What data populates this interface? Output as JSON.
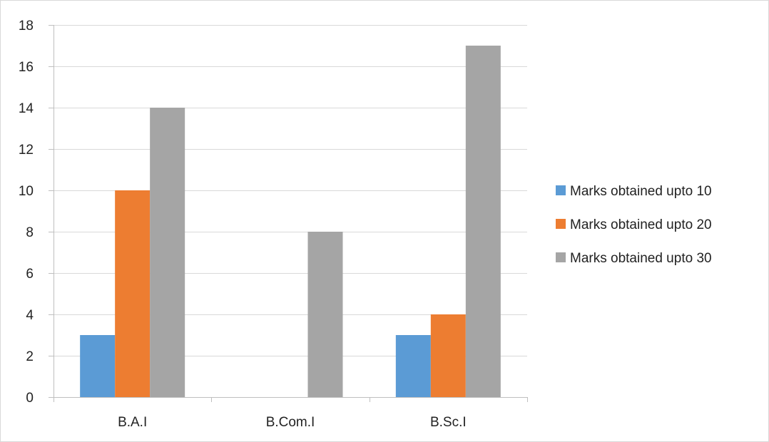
{
  "chart_data": {
    "type": "bar",
    "title": "",
    "xlabel": "",
    "ylabel": "",
    "categories": [
      "B.A.I",
      "B.Com.I",
      "B.Sc.I"
    ],
    "series": [
      {
        "name": "Marks obtained upto 10",
        "color": "#5B9BD5",
        "values": [
          3,
          0,
          3
        ]
      },
      {
        "name": "Marks obtained upto 20",
        "color": "#ED7D31",
        "values": [
          10,
          0,
          4
        ]
      },
      {
        "name": "Marks obtained upto 30",
        "color": "#A5A5A5",
        "values": [
          14,
          8,
          17
        ]
      }
    ],
    "ylim": [
      0,
      18
    ],
    "yticks": [
      0,
      2,
      4,
      6,
      8,
      10,
      12,
      14,
      16,
      18
    ],
    "grid": true,
    "legend_position": "right"
  }
}
